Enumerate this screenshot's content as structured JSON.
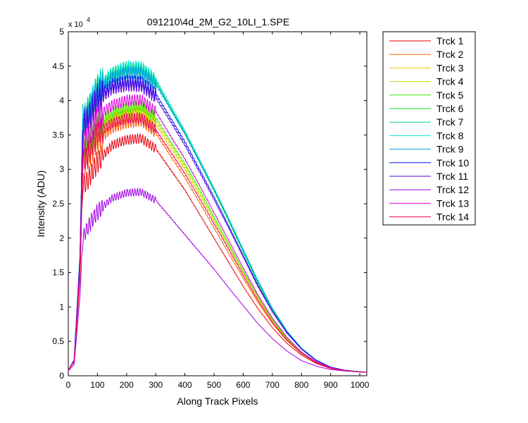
{
  "chart_data": {
    "type": "line",
    "title": "091210\\4d_2M_G2_10LI_1.SPE",
    "xlabel": "Along Track Pixels",
    "ylabel": "Intensity (ADU)",
    "y_exponent_label": "x 10",
    "y_exponent_power": "4",
    "xlim": [
      0,
      1024
    ],
    "ylim": [
      0,
      50000
    ],
    "xticks": [
      0,
      100,
      200,
      300,
      400,
      500,
      600,
      700,
      800,
      900,
      1000
    ],
    "yticks": [
      0,
      5000,
      10000,
      15000,
      20000,
      25000,
      30000,
      35000,
      40000,
      45000,
      50000
    ],
    "ytick_labels": [
      "0",
      "0.5",
      "1",
      "1.5",
      "2",
      "2.5",
      "3",
      "3.5",
      "4",
      "4.5",
      "5"
    ],
    "grid": false,
    "legend_position": "outside-right",
    "x": [
      0,
      20,
      40,
      50,
      60,
      80,
      100,
      150,
      200,
      250,
      300,
      350,
      400,
      450,
      500,
      550,
      600,
      650,
      700,
      750,
      800,
      850,
      900,
      950,
      1000,
      1024
    ],
    "series": [
      {
        "name": "Trck 1",
        "color": "#e8000b",
        "values": [
          800,
          2000,
          14000,
          28000,
          28000,
          29500,
          31000,
          33500,
          34300,
          34500,
          33000,
          30000,
          27000,
          23500,
          20000,
          16500,
          13000,
          9800,
          7000,
          4700,
          3000,
          1800,
          1050,
          720,
          560,
          520
        ]
      },
      {
        "name": "Trck 2",
        "color": "#ff5a00",
        "values": [
          800,
          2100,
          15000,
          31000,
          31000,
          32500,
          34000,
          36000,
          36700,
          37000,
          35300,
          32000,
          28800,
          25200,
          21500,
          17800,
          14200,
          10700,
          7600,
          5100,
          3200,
          1900,
          1100,
          740,
          570,
          520
        ]
      },
      {
        "name": "Trck 3",
        "color": "#e8c400",
        "values": [
          800,
          2100,
          15500,
          32500,
          32500,
          34000,
          35500,
          37300,
          38000,
          38300,
          36600,
          33200,
          30000,
          26300,
          22500,
          18700,
          14900,
          11200,
          8000,
          5300,
          3300,
          1950,
          1120,
          750,
          570,
          520
        ]
      },
      {
        "name": "Trck 4",
        "color": "#aee800",
        "values": [
          800,
          2100,
          15700,
          33000,
          33000,
          34500,
          36000,
          37800,
          38600,
          38900,
          37100,
          33700,
          30400,
          26700,
          22800,
          19000,
          15100,
          11400,
          8100,
          5400,
          3350,
          1980,
          1130,
          750,
          570,
          520
        ]
      },
      {
        "name": "Trck 5",
        "color": "#3ee800",
        "values": [
          800,
          2100,
          15800,
          33500,
          33500,
          35000,
          36500,
          38300,
          39000,
          39300,
          37600,
          34100,
          30800,
          27100,
          23100,
          19200,
          15300,
          11600,
          8200,
          5500,
          3400,
          2000,
          1140,
          760,
          575,
          520
        ]
      },
      {
        "name": "Trck 6",
        "color": "#00e82e",
        "values": [
          800,
          2300,
          17500,
          37500,
          37500,
          39500,
          41500,
          43800,
          44600,
          44500,
          42700,
          38900,
          35200,
          31100,
          26900,
          22500,
          18000,
          13500,
          9600,
          6400,
          3900,
          2300,
          1250,
          800,
          590,
          530
        ]
      },
      {
        "name": "Trck 7",
        "color": "#00d28c",
        "values": [
          800,
          2300,
          17500,
          37500,
          37500,
          39500,
          41500,
          43800,
          44700,
          44600,
          42900,
          39100,
          35400,
          31300,
          27100,
          22700,
          18200,
          13700,
          9700,
          6500,
          4000,
          2300,
          1260,
          800,
          590,
          530
        ]
      },
      {
        "name": "Trck 8",
        "color": "#00e6d2",
        "values": [
          800,
          2300,
          17600,
          37800,
          37800,
          39800,
          41800,
          44000,
          44900,
          44800,
          43100,
          39300,
          35600,
          31500,
          27300,
          22900,
          18400,
          13900,
          9800,
          6500,
          4000,
          2300,
          1260,
          800,
          590,
          530
        ]
      },
      {
        "name": "Trck 9",
        "color": "#0096e6",
        "values": [
          800,
          2300,
          17400,
          37300,
          37300,
          39300,
          41200,
          43300,
          44100,
          44000,
          42400,
          38800,
          35200,
          31100,
          27000,
          22700,
          18200,
          13800,
          9800,
          6500,
          4000,
          2300,
          1260,
          800,
          590,
          530
        ]
      },
      {
        "name": "Trck 10",
        "color": "#0014e6",
        "values": [
          800,
          2300,
          17200,
          36800,
          36800,
          38600,
          40500,
          42300,
          42800,
          42700,
          41000,
          37500,
          34000,
          30000,
          26000,
          21800,
          17500,
          13200,
          9400,
          6300,
          3900,
          2250,
          1240,
          790,
          585,
          525
        ]
      },
      {
        "name": "Trck 11",
        "color": "#5a00e6",
        "values": [
          800,
          2250,
          17000,
          36300,
          36300,
          38100,
          39900,
          41700,
          42200,
          42100,
          40400,
          37000,
          33500,
          29600,
          25600,
          21500,
          17300,
          13000,
          9300,
          6200,
          3850,
          2200,
          1230,
          790,
          585,
          525
        ]
      },
      {
        "name": "Trck 12",
        "color": "#a000e6",
        "values": [
          700,
          1600,
          11500,
          20000,
          21000,
          22500,
          23800,
          25800,
          26600,
          26700,
          25500,
          23000,
          20500,
          18000,
          15500,
          12800,
          10200,
          7600,
          5400,
          3600,
          2200,
          1400,
          900,
          700,
          560,
          520
        ]
      },
      {
        "name": "Trck 13",
        "color": "#dc00dc",
        "values": [
          800,
          2150,
          16000,
          34000,
          34000,
          35800,
          37600,
          39300,
          40000,
          40100,
          38400,
          34900,
          31500,
          27700,
          23700,
          19700,
          15700,
          11800,
          8400,
          5600,
          3450,
          2050,
          1160,
          760,
          575,
          520
        ]
      },
      {
        "name": "Trck 14",
        "color": "#e6005a",
        "values": [
          800,
          2050,
          15000,
          31500,
          31500,
          33300,
          35200,
          36700,
          37400,
          37500,
          35800,
          32600,
          29400,
          25800,
          22100,
          18400,
          14600,
          11000,
          7800,
          5200,
          3250,
          1930,
          1110,
          740,
          570,
          520
        ]
      }
    ]
  }
}
